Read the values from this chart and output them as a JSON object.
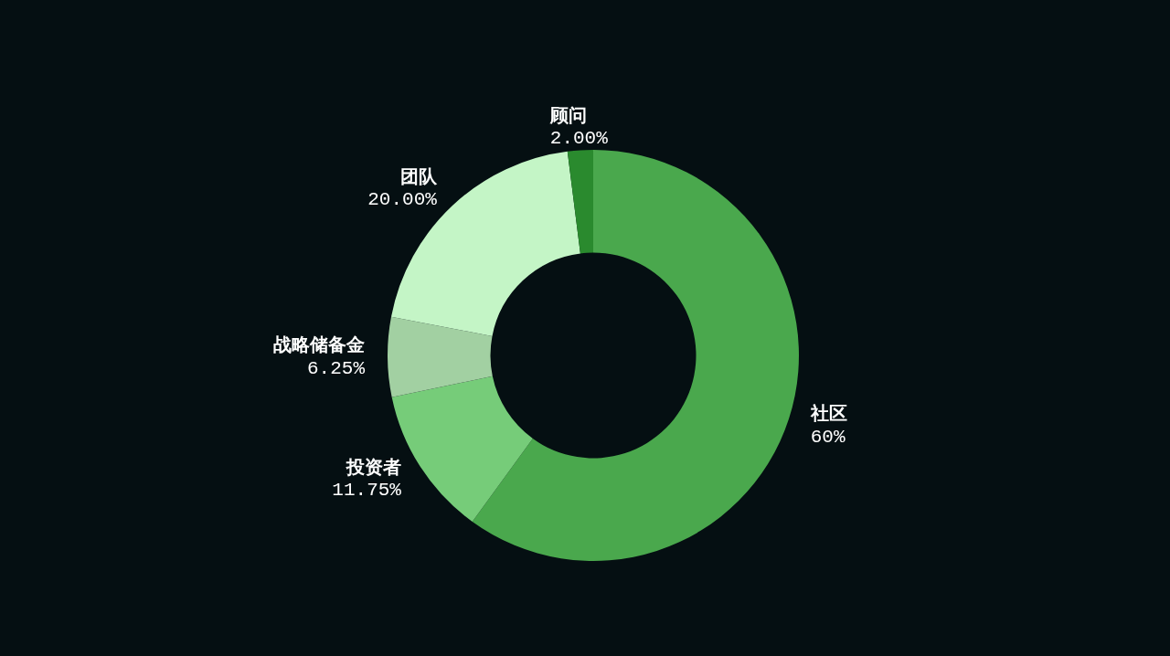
{
  "chart_data": {
    "type": "donut",
    "categories": [
      "社区",
      "投资者",
      "战略储备金",
      "团队",
      "顾问"
    ],
    "values": [
      60,
      11.75,
      6.25,
      20,
      2
    ],
    "value_labels": [
      "60%",
      "11.75%",
      "6.25%",
      "20.00%",
      "2.00%"
    ],
    "colors": [
      "#4aa84d",
      "#76cc79",
      "#a2d0a2",
      "#c4f5c6",
      "#2a8a2e"
    ]
  }
}
